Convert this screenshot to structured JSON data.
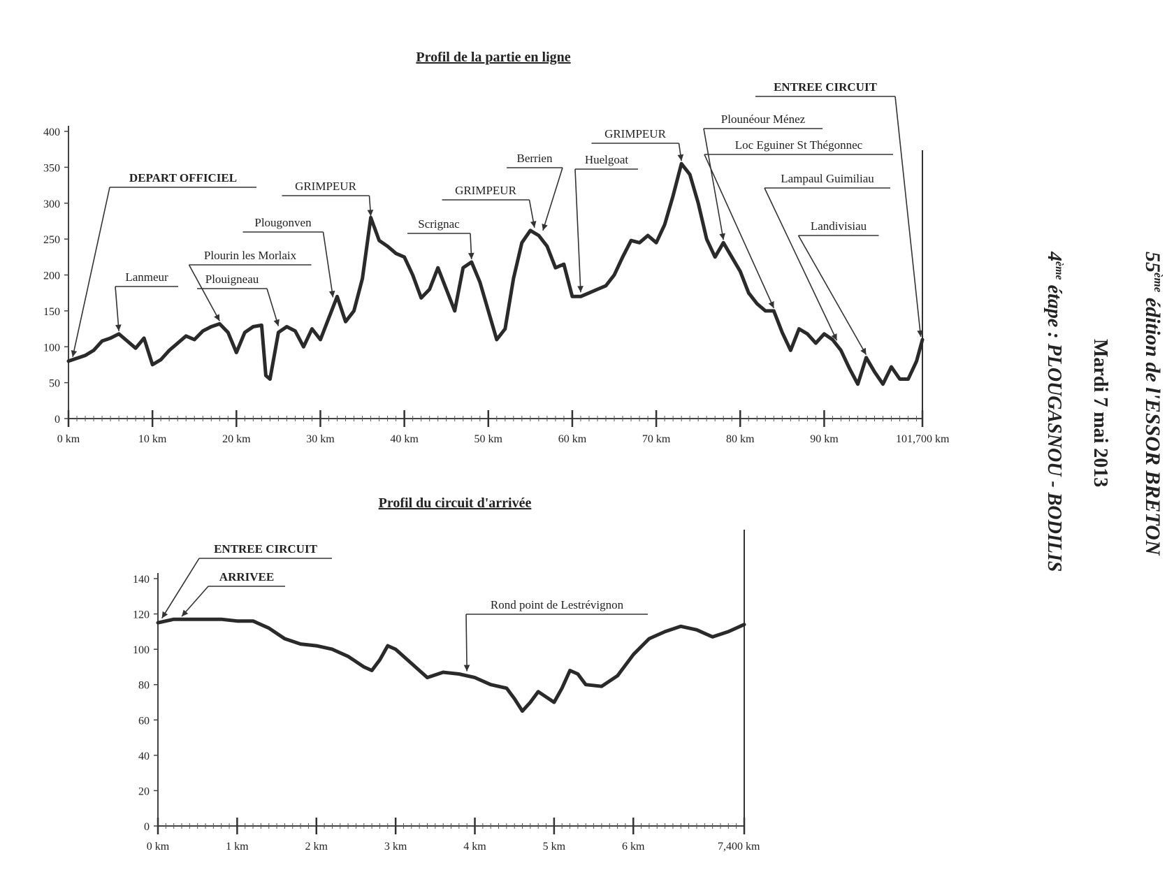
{
  "side_header": {
    "edition_number": "55",
    "edition_sup": "ème",
    "edition_text": " édition de l'ESSOR BRETON",
    "date": "Mardi 7 mai 2013",
    "stage_number": "4",
    "stage_sup": "ème",
    "stage_text": " étape : PLOUGASNOU - BODILIS"
  },
  "chart_data": [
    {
      "type": "line",
      "title": "Profil de la partie en ligne",
      "xlabel": "",
      "ylabel": "",
      "ylim": [
        0,
        400
      ],
      "xlim": [
        0,
        101.7
      ],
      "y_ticks": [
        "0",
        "50",
        "100",
        "150",
        "200",
        "250",
        "300",
        "350",
        "400"
      ],
      "x_tick_labels": [
        "0 km",
        "10 km",
        "20 km",
        "30 km",
        "40 km",
        "50 km",
        "60 km",
        "70 km",
        "80 km",
        "90 km",
        "101,700 km"
      ],
      "x_tick_values": [
        0,
        10,
        20,
        30,
        40,
        50,
        60,
        70,
        80,
        90,
        101.7
      ],
      "grid": false,
      "series": [
        {
          "x": [
            0,
            2,
            3,
            4,
            5,
            6,
            7,
            8,
            9,
            10,
            11,
            12,
            13,
            14,
            15,
            16,
            17,
            18,
            19,
            20,
            21,
            22,
            23,
            23.5,
            24,
            25,
            26,
            27,
            28,
            29,
            30,
            31,
            32,
            33,
            34,
            35,
            36,
            37,
            38,
            39,
            40,
            41,
            42,
            43,
            44,
            45,
            46,
            47,
            48,
            49,
            50,
            51,
            52,
            53,
            54,
            55,
            56,
            57,
            58,
            59,
            60,
            61,
            62,
            63,
            64,
            65,
            66,
            67,
            68,
            69,
            70,
            71,
            72,
            73,
            74,
            75,
            76,
            77,
            78,
            79,
            80,
            81,
            82,
            83,
            84,
            85,
            86,
            87,
            88,
            89,
            90,
            91,
            92,
            93,
            94,
            95,
            96,
            97,
            98,
            99,
            100,
            101,
            101.7
          ],
          "y": [
            80,
            88,
            95,
            108,
            112,
            118,
            108,
            98,
            112,
            75,
            82,
            95,
            105,
            115,
            110,
            122,
            128,
            132,
            120,
            92,
            120,
            128,
            130,
            60,
            55,
            120,
            128,
            122,
            100,
            125,
            110,
            140,
            170,
            135,
            150,
            195,
            280,
            248,
            240,
            230,
            225,
            200,
            168,
            180,
            210,
            180,
            150,
            210,
            218,
            190,
            150,
            110,
            125,
            195,
            245,
            262,
            255,
            240,
            210,
            215,
            170,
            170,
            175,
            180,
            185,
            200,
            225,
            248,
            245,
            255,
            245,
            270,
            310,
            355,
            340,
            300,
            250,
            225,
            245,
            225,
            205,
            175,
            160,
            150,
            150,
            120,
            95,
            125,
            118,
            105,
            118,
            110,
            95,
            70,
            48,
            85,
            65,
            48,
            72,
            55,
            55,
            80,
            110
          ]
        }
      ],
      "annotations": [
        {
          "label": "DEPART OFFICIEL",
          "x": 0.5,
          "y": 82,
          "bold": true
        },
        {
          "label": "Lanmeur",
          "x": 6,
          "y": 118,
          "bold": false
        },
        {
          "label": "Plourin les Morlaix",
          "x": 18,
          "y": 132,
          "bold": false
        },
        {
          "label": "Plouigneau",
          "x": 25,
          "y": 125,
          "bold": false
        },
        {
          "label": "Plougonven",
          "x": 31.5,
          "y": 165,
          "bold": false
        },
        {
          "label": "GRIMPEUR",
          "x": 36,
          "y": 278,
          "bold": false
        },
        {
          "label": "Scrignac",
          "x": 48,
          "y": 218,
          "bold": false
        },
        {
          "label": "GRIMPEUR",
          "x": 55.5,
          "y": 262,
          "bold": false
        },
        {
          "label": "Berrien",
          "x": 56.5,
          "y": 258,
          "bold": false
        },
        {
          "label": "Huelgoat",
          "x": 61,
          "y": 172,
          "bold": false
        },
        {
          "label": "GRIMPEUR",
          "x": 73,
          "y": 355,
          "bold": false
        },
        {
          "label": "Plounéour Ménez",
          "x": 78,
          "y": 245,
          "bold": false
        },
        {
          "label": "Loc Eguiner St Thégonnec",
          "x": 84,
          "y": 150,
          "bold": false
        },
        {
          "label": "Lampaul Guimiliau",
          "x": 91.5,
          "y": 105,
          "bold": false
        },
        {
          "label": "Landivisiau",
          "x": 95,
          "y": 85,
          "bold": false
        },
        {
          "label": "ENTREE CIRCUIT",
          "x": 101.5,
          "y": 110,
          "bold": true
        }
      ]
    },
    {
      "type": "line",
      "title": "Profil du circuit d'arrivée",
      "xlabel": "",
      "ylabel": "",
      "ylim": [
        0,
        140
      ],
      "xlim": [
        0,
        7.4
      ],
      "y_ticks": [
        "0",
        "20",
        "40",
        "60",
        "80",
        "100",
        "120",
        "140"
      ],
      "x_tick_labels": [
        "0 km",
        "1 km",
        "2 km",
        "3 km",
        "4 km",
        "5 km",
        "6 km",
        "7,400 km"
      ],
      "x_tick_values": [
        0,
        1,
        2,
        3,
        4,
        5,
        6,
        7.4
      ],
      "grid": false,
      "series": [
        {
          "x": [
            0,
            0.2,
            0.5,
            0.8,
            1.0,
            1.2,
            1.4,
            1.6,
            1.8,
            2.0,
            2.2,
            2.4,
            2.6,
            2.7,
            2.8,
            2.9,
            3.0,
            3.2,
            3.4,
            3.6,
            3.8,
            4.0,
            4.2,
            4.4,
            4.5,
            4.6,
            4.7,
            4.8,
            4.9,
            5.0,
            5.1,
            5.2,
            5.3,
            5.4,
            5.6,
            5.8,
            6.0,
            6.2,
            6.4,
            6.6,
            6.8,
            7.0,
            7.2,
            7.4
          ],
          "y": [
            115,
            117,
            117,
            117,
            116,
            116,
            112,
            106,
            103,
            102,
            100,
            96,
            90,
            88,
            94,
            102,
            100,
            92,
            84,
            87,
            86,
            84,
            80,
            78,
            72,
            65,
            70,
            76,
            73,
            70,
            78,
            88,
            86,
            80,
            79,
            85,
            97,
            106,
            110,
            113,
            111,
            107,
            110,
            114
          ]
        }
      ],
      "annotations": [
        {
          "label": "ENTREE CIRCUIT",
          "x": 0.05,
          "y": 116,
          "bold": true
        },
        {
          "label": "ARRIVEE",
          "x": 0.3,
          "y": 117,
          "bold": true
        },
        {
          "label": "Rond point de Lestrévignon",
          "x": 3.9,
          "y": 86,
          "bold": false
        }
      ]
    }
  ]
}
